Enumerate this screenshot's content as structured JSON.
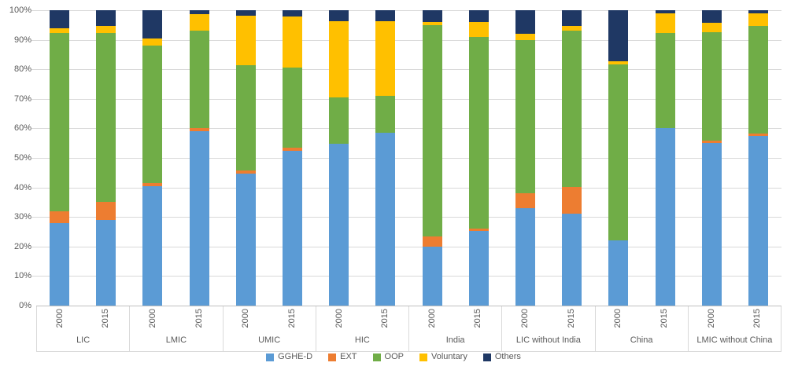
{
  "colors": {
    "background": "#FFFFFF",
    "gridline": "#D9D9D9",
    "axis_line": "#BFBFBF",
    "axis_text": "#595959"
  },
  "chart_data": {
    "type": "bar",
    "stacked": true,
    "percent_stacked": true,
    "title": "",
    "xlabel": "",
    "ylabel": "",
    "ylim": [
      0,
      100
    ],
    "grid": true,
    "legend_position": "bottom",
    "y_axis": {
      "ticks": [
        "0%",
        "10%",
        "20%",
        "30%",
        "40%",
        "50%",
        "60%",
        "70%",
        "80%",
        "90%",
        "100%"
      ],
      "values": [
        0,
        10,
        20,
        30,
        40,
        50,
        60,
        70,
        80,
        90,
        100
      ]
    },
    "groups": [
      "LIC",
      "LMIC",
      "UMIC",
      "HIC",
      "India",
      "LIC without India",
      "China",
      "LMIC without China"
    ],
    "years": [
      "2000",
      "2015"
    ],
    "bar_order_note": "values arrays hold 16 bars: for each group, year 2000 then 2015",
    "series": [
      {
        "name": "GGHE-D",
        "color": "#5B9BD5",
        "values": [
          28,
          29,
          40.5,
          59,
          44.8,
          52.5,
          54.8,
          58.5,
          20,
          25.2,
          33,
          31,
          22,
          60,
          55,
          57.5
        ]
      },
      {
        "name": "EXT",
        "color": "#ED7D31",
        "values": [
          4,
          6,
          1,
          1,
          1,
          1,
          0,
          0,
          3.5,
          0.8,
          5,
          9.3,
          0,
          0,
          0.8,
          0.8
        ]
      },
      {
        "name": "OOP",
        "color": "#70AD47",
        "values": [
          60.3,
          57.4,
          46.5,
          33,
          35.7,
          27.2,
          15.7,
          12.5,
          71.5,
          65,
          52,
          52.7,
          59.7,
          32.3,
          36.7,
          36.4
        ]
      },
      {
        "name": "Voluntary",
        "color": "#FFC000",
        "values": [
          1.5,
          2.2,
          2.5,
          5.7,
          16.6,
          17.3,
          25.8,
          25.3,
          1,
          5,
          2,
          1.7,
          0.9,
          6.7,
          3.2,
          4.3
        ]
      },
      {
        "name": "Others",
        "color": "#1F3864",
        "values": [
          6.2,
          5.4,
          9.5,
          1.3,
          1.9,
          2,
          3.7,
          3.7,
          4,
          4,
          8,
          5.3,
          17.4,
          1,
          4.3,
          1
        ]
      }
    ]
  }
}
